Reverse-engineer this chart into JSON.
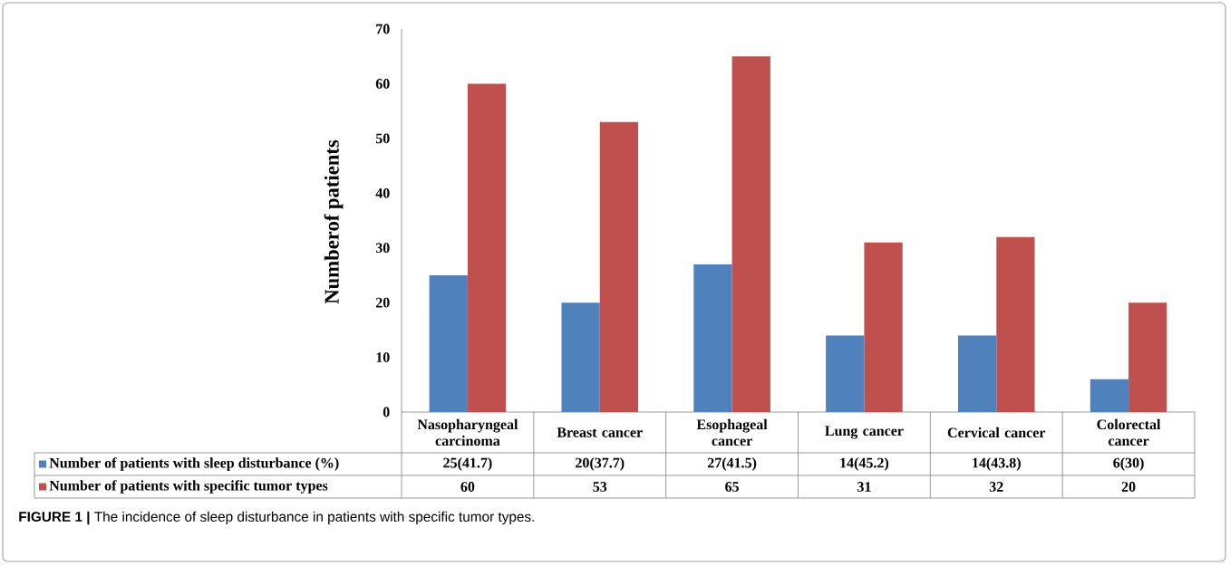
{
  "chart_data": {
    "type": "bar",
    "ylabel": "Numberof patients",
    "categories": [
      "Nasopharyngeal carcinoma",
      "Breast cancer",
      "Esophageal cancer",
      "Lung cancer",
      "Cervical cancer",
      "Colorectal cancer"
    ],
    "series": [
      {
        "name": "Number of patients with sleep disturbance (%)",
        "color": "#4f81bd",
        "values": [
          25,
          20,
          27,
          14,
          14,
          6
        ],
        "value_labels": [
          "25(41.7)",
          "20(37.7)",
          "27(41.5)",
          "14(45.2)",
          "14(43.8)",
          "6(30)"
        ]
      },
      {
        "name": "Number of patients with specific tumor types",
        "color": "#c0504d",
        "values": [
          60,
          53,
          65,
          31,
          32,
          20
        ],
        "value_labels": [
          "60",
          "53",
          "65",
          "31",
          "32",
          "20"
        ]
      }
    ],
    "ylim": [
      0,
      70
    ],
    "yticks": [
      0,
      10,
      20,
      30,
      40,
      50,
      60,
      70
    ],
    "legend": "bottom",
    "annotations": [
      "**FIGURE 1 |** The incidence of sleep disturbance in patients with specific tumor types."
    ]
  }
}
